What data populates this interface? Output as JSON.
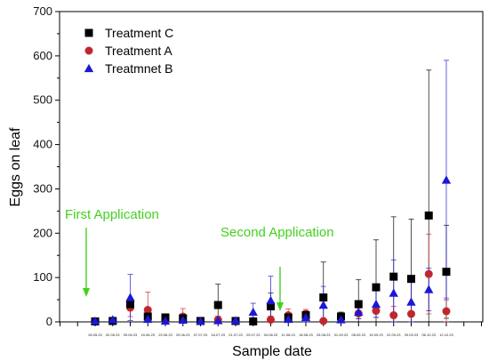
{
  "chart_data": {
    "type": "scatter",
    "xlabel": "Sample date",
    "ylabel": "Eggs on leaf",
    "ylim": [
      0,
      700
    ],
    "yticks": [
      0,
      100,
      200,
      300,
      400,
      500,
      600,
      700
    ],
    "categories": [
      "28.05.23",
      "02.06.23",
      "09.06.23",
      "15.06.23",
      "23.06.23",
      "29.06.23",
      "07.07.23",
      "16.07.23",
      "21.07.23",
      "29.07.23",
      "04.08.23",
      "11.08.23",
      "18.08.23",
      "25.08.23",
      "01.09.23",
      "08.09.23",
      "15.09.23",
      "22.09.23",
      "29.09.23",
      "06.10.23",
      "12.10.23"
    ],
    "grid": false,
    "legend_position": "top-left",
    "series": [
      {
        "name": "Treatment C",
        "color": "#000000",
        "marker": "square",
        "values": [
          1,
          2,
          40,
          12,
          10,
          8,
          2,
          38,
          2,
          1,
          35,
          10,
          15,
          55,
          12,
          40,
          78,
          102,
          97,
          240,
          113
        ],
        "err": [
          1,
          2,
          10,
          8,
          8,
          7,
          2,
          47,
          2,
          1,
          30,
          8,
          10,
          80,
          10,
          55,
          107,
          135,
          135,
          328,
          105
        ]
      },
      {
        "name": "Treatment A",
        "color": "#c0272d",
        "marker": "circle",
        "values": [
          1,
          3,
          32,
          27,
          3,
          12,
          2,
          5,
          2,
          2,
          5,
          15,
          18,
          2,
          8,
          19,
          25,
          15,
          18,
          108,
          24
        ],
        "err": [
          1,
          3,
          20,
          40,
          6,
          18,
          3,
          8,
          3,
          3,
          8,
          14,
          10,
          4,
          10,
          12,
          15,
          20,
          25,
          90,
          30
        ]
      },
      {
        "name": "Treatmnet B",
        "color": "#1c18d8",
        "marker": "triangle",
        "values": [
          2,
          5,
          55,
          6,
          2,
          4,
          2,
          3,
          3,
          22,
          48,
          6,
          10,
          38,
          5,
          22,
          40,
          65,
          45,
          73,
          320
        ],
        "err": [
          2,
          5,
          52,
          6,
          3,
          5,
          3,
          4,
          3,
          20,
          55,
          12,
          12,
          42,
          6,
          15,
          30,
          75,
          55,
          48,
          270
        ]
      }
    ],
    "annotations": [
      {
        "text": "First Application",
        "target": "28.05.23"
      },
      {
        "text": "Second Application",
        "target": "04.08.23"
      }
    ]
  },
  "annotation_color": "#44d11e"
}
